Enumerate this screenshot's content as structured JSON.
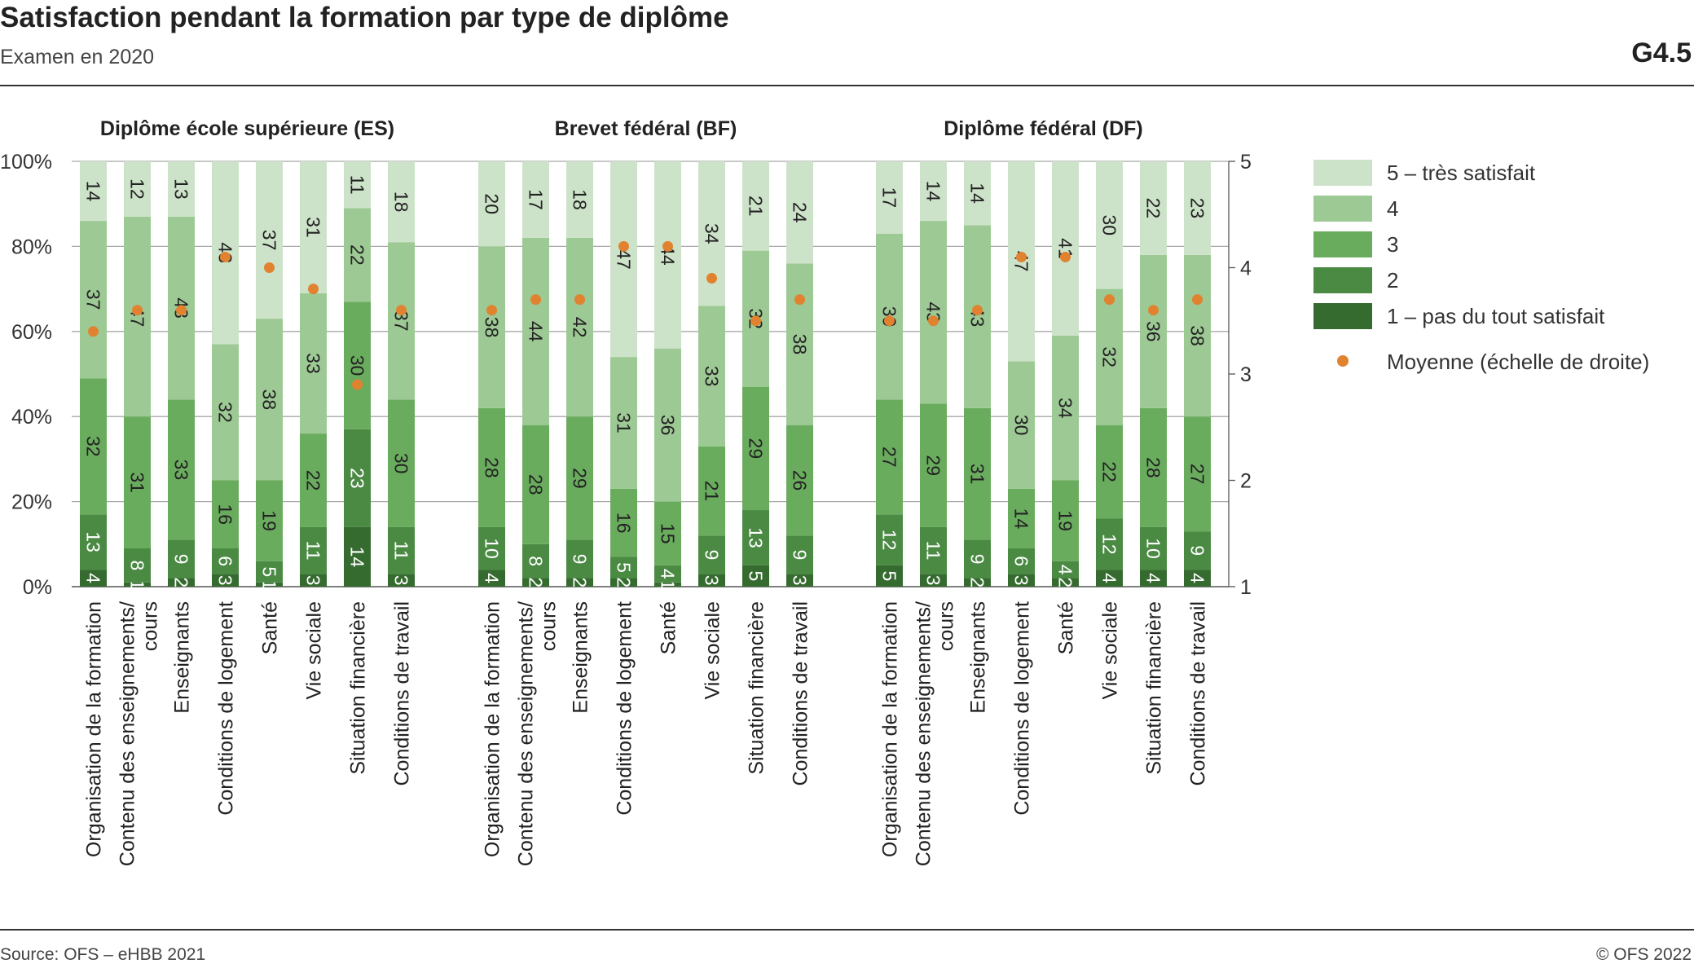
{
  "header": {
    "title": "Satisfaction pendant la formation par type de diplôme",
    "subtitle": "Examen en 2020",
    "code": "G4.5"
  },
  "footer": {
    "source": "Source: OFS – eHBB 2021",
    "copyright": "© OFS 2022"
  },
  "legend": {
    "items": [
      {
        "label": "5 – très satisfait",
        "color": "#cde3c9"
      },
      {
        "label": "4",
        "color": "#9dc994"
      },
      {
        "label": "3",
        "color": "#6aac5e"
      },
      {
        "label": "2",
        "color": "#4a8a43"
      },
      {
        "label": "1 – pas du tout satisfait",
        "color": "#356b2f"
      }
    ],
    "mean_label": "Moyenne  (échelle de droite)",
    "mean_color": "#e0822f"
  },
  "chart_data": {
    "type": "bar",
    "stacked": true,
    "left_axis": {
      "ticks": [
        "0%",
        "20%",
        "40%",
        "60%",
        "80%",
        "100%"
      ],
      "range": [
        0,
        100
      ]
    },
    "right_axis": {
      "ticks": [
        "1",
        "2",
        "3",
        "4",
        "5"
      ],
      "range": [
        1,
        5
      ]
    },
    "categories": [
      "Organisation de la formation",
      "Contenu des enseignements/ cours",
      "Enseignants",
      "Conditions de logement",
      "Santé",
      "Vie sociale",
      "Situation financière",
      "Conditions de travail"
    ],
    "series_names": [
      "1 – pas du tout satisfait",
      "2",
      "3",
      "4",
      "5 – très satisfait"
    ],
    "groups": [
      {
        "title": "Diplôme école supérieure (ES)",
        "bars": [
          {
            "values": [
              4,
              13,
              32,
              37,
              14
            ],
            "mean": 3.4
          },
          {
            "values": [
              1,
              8,
              31,
              47,
              12
            ],
            "mean": 3.6
          },
          {
            "values": [
              2,
              9,
              33,
              43,
              13
            ],
            "mean": 3.6
          },
          {
            "values": [
              3,
              6,
              16,
              32,
              43
            ],
            "mean": 4.1
          },
          {
            "values": [
              1,
              5,
              19,
              38,
              37
            ],
            "mean": 4.0
          },
          {
            "values": [
              3,
              11,
              22,
              33,
              31
            ],
            "mean": 3.8
          },
          {
            "values": [
              14,
              23,
              30,
              22,
              11
            ],
            "mean": 2.9
          },
          {
            "values": [
              3,
              11,
              30,
              37,
              18
            ],
            "mean": 3.6
          }
        ]
      },
      {
        "title": "Brevet fédéral (BF)",
        "bars": [
          {
            "values": [
              4,
              10,
              28,
              38,
              20
            ],
            "mean": 3.6
          },
          {
            "values": [
              2,
              8,
              28,
              44,
              17
            ],
            "mean": 3.7
          },
          {
            "values": [
              2,
              9,
              29,
              42,
              18
            ],
            "mean": 3.7
          },
          {
            "values": [
              2,
              5,
              16,
              31,
              47
            ],
            "mean": 4.2
          },
          {
            "values": [
              1,
              4,
              15,
              36,
              44
            ],
            "mean": 4.2
          },
          {
            "values": [
              3,
              9,
              21,
              33,
              34
            ],
            "mean": 3.9
          },
          {
            "values": [
              5,
              13,
              29,
              32,
              21
            ],
            "mean": 3.5
          },
          {
            "values": [
              3,
              9,
              26,
              38,
              24
            ],
            "mean": 3.7
          }
        ]
      },
      {
        "title": "Diplôme fédéral (DF)",
        "bars": [
          {
            "values": [
              5,
              12,
              27,
              39,
              17
            ],
            "mean": 3.5
          },
          {
            "values": [
              3,
              11,
              29,
              43,
              14
            ],
            "mean": 3.5
          },
          {
            "values": [
              2,
              9,
              31,
              43,
              14
            ],
            "mean": 3.6
          },
          {
            "values": [
              3,
              6,
              14,
              30,
              47
            ],
            "mean": 4.1
          },
          {
            "values": [
              2,
              4,
              19,
              34,
              41
            ],
            "mean": 4.1
          },
          {
            "values": [
              4,
              12,
              22,
              32,
              30
            ],
            "mean": 3.7
          },
          {
            "values": [
              4,
              10,
              28,
              36,
              22
            ],
            "mean": 3.6
          },
          {
            "values": [
              4,
              9,
              27,
              38,
              23
            ],
            "mean": 3.7
          }
        ]
      }
    ]
  }
}
